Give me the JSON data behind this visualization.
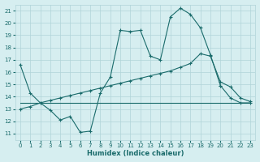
{
  "xlabel": "Humidex (Indice chaleur)",
  "background_color": "#d6eef0",
  "grid_color": "#b0d4d8",
  "line_color": "#1a6b6b",
  "xlim": [
    -0.5,
    23.5
  ],
  "ylim": [
    10.5,
    21.5
  ],
  "xticks": [
    0,
    1,
    2,
    3,
    4,
    5,
    6,
    7,
    8,
    9,
    10,
    11,
    12,
    13,
    14,
    15,
    16,
    17,
    18,
    19,
    20,
    21,
    22,
    23
  ],
  "yticks": [
    11,
    12,
    13,
    14,
    15,
    16,
    17,
    18,
    19,
    20,
    21
  ],
  "series1_x": [
    0,
    1,
    2,
    3,
    4,
    5,
    6,
    7,
    8,
    9,
    10,
    11,
    12,
    13,
    14,
    15,
    16,
    17,
    18,
    19,
    20,
    21,
    22,
    23
  ],
  "series1_y": [
    16.6,
    14.3,
    13.5,
    12.9,
    12.1,
    12.4,
    11.1,
    11.2,
    14.3,
    15.6,
    19.4,
    19.3,
    19.4,
    17.3,
    17.0,
    20.5,
    21.2,
    20.7,
    19.6,
    17.4,
    14.9,
    null,
    null,
    null
  ],
  "series2_x": [
    0,
    1,
    2,
    3,
    4,
    5,
    6,
    7,
    8,
    9,
    10,
    11,
    12,
    13,
    14,
    15,
    16,
    17,
    18,
    19,
    20,
    21,
    22,
    23
  ],
  "series2_y": [
    13.5,
    13.5,
    13.5,
    13.5,
    13.5,
    13.5,
    13.5,
    13.5,
    13.5,
    13.5,
    13.5,
    13.5,
    13.5,
    13.5,
    13.5,
    13.5,
    13.5,
    13.5,
    13.5,
    13.5,
    13.5,
    13.5,
    13.5,
    13.5
  ],
  "series3_x": [
    0,
    1,
    2,
    3,
    4,
    5,
    6,
    7,
    8,
    9,
    10,
    11,
    12,
    13,
    14,
    15,
    16,
    17,
    18,
    19,
    20,
    21,
    22,
    23
  ],
  "series3_y": [
    13.0,
    13.2,
    13.5,
    13.7,
    13.9,
    14.1,
    14.3,
    14.5,
    14.7,
    14.9,
    15.1,
    15.3,
    15.5,
    15.7,
    15.9,
    16.1,
    16.4,
    16.7,
    17.5,
    17.3,
    15.2,
    14.8,
    13.9,
    13.6
  ],
  "series4_x": [
    20,
    21,
    22,
    23
  ],
  "series4_y": [
    14.9,
    13.9,
    13.5,
    13.5
  ]
}
